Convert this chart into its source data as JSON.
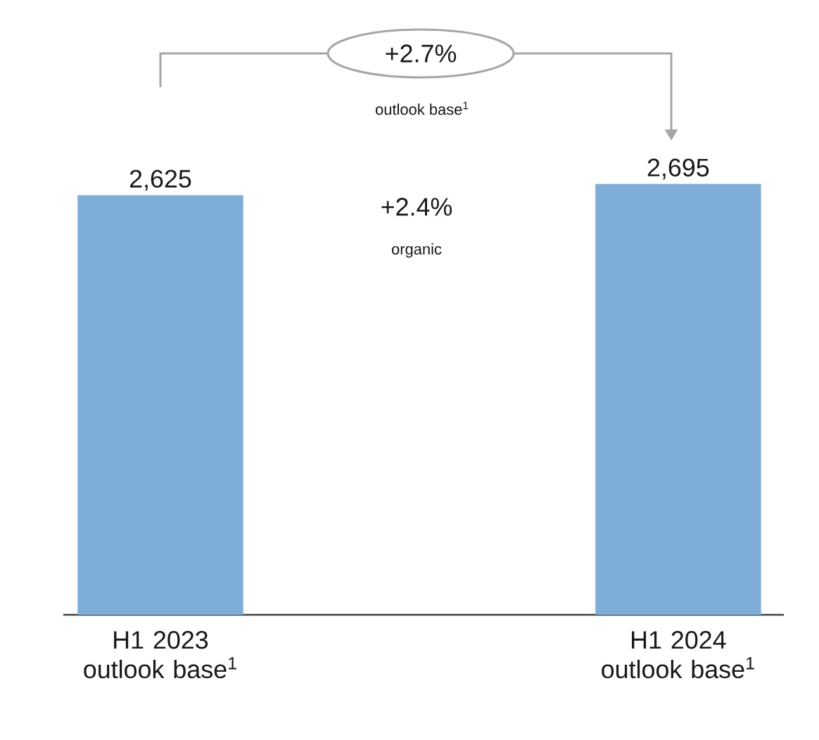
{
  "chart_data": {
    "type": "bar",
    "categories": [
      "H1 2023 outlook base$^{1}$",
      "H1 2024 outlook base$^{1}$"
    ],
    "values": [
      2625,
      2695
    ],
    "value_labels": [
      "2,625",
      "2,695"
    ],
    "color": "#7eaed8",
    "annotations": [
      "+2.7%",
      "outlook base$^{1}$",
      "+2.4%",
      "organic"
    ]
  }
}
